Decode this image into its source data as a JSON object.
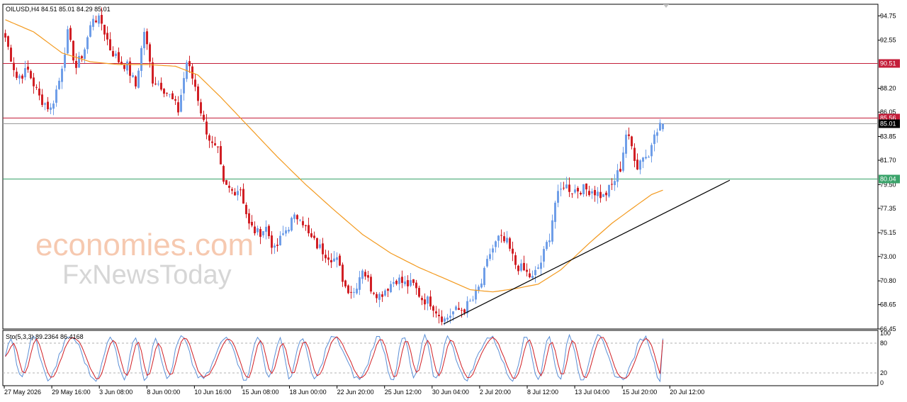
{
  "header": {
    "symbol_info": "OILUSD,H4  84.51 85.01 84.29 85.01",
    "stoch_info": "Sto(5,3,3) 89.2364 86.4168"
  },
  "watermark": {
    "line1": "economies.com",
    "line2": "FxNewsToday"
  },
  "colors": {
    "bull": "#6f9ee8",
    "bear": "#d11f25",
    "ma": "#f39a1f",
    "resistance": "#c41e3a",
    "support": "#3aa36a",
    "current": "#000000",
    "stoch_main": "#5b8fd6",
    "stoch_signal": "#d11f25"
  },
  "chart_data": {
    "type": "candlestick",
    "symbol": "OILUSD",
    "timeframe": "H4",
    "ohlc_last": {
      "open": 84.51,
      "high": 85.01,
      "low": 84.29,
      "close": 85.01
    },
    "y_ticks": [
      "94.75",
      "92.55",
      "90.51",
      "88.20",
      "86.05",
      "85.56",
      "85.01",
      "83.85",
      "81.70",
      "80.04",
      "79.50",
      "77.35",
      "75.15",
      "73.00",
      "70.80",
      "68.65",
      "66.45"
    ],
    "ylim": [
      66.45,
      95.8
    ],
    "x_labels": [
      "27 May 2026",
      "29 May 16:00",
      "3 Jun 08:00",
      "8 Jun 00:00",
      "10 Jun 16:00",
      "15 Jun 08:00",
      "18 Jun 00:00",
      "22 Jun 20:00",
      "25 Jun 12:00",
      "30 Jun 04:00",
      "2 Jul 20:00",
      "8 Jul 12:00",
      "13 Jul 04:00",
      "15 Jul 20:00",
      "20 Jul 12:00"
    ],
    "horizontal_levels": [
      {
        "value": 90.51,
        "label": "90.51",
        "role": "resistance"
      },
      {
        "value": 85.56,
        "label": "85.56",
        "role": "resistance"
      },
      {
        "value": 85.01,
        "label": "85.01",
        "role": "current"
      },
      {
        "value": 80.04,
        "label": "80.04",
        "role": "support"
      }
    ],
    "trendline": {
      "from": {
        "bar": 155,
        "price": 66.9
      },
      "to": {
        "bar": 256,
        "price": 79.9
      }
    },
    "close_path": [
      [
        0,
        92.8
      ],
      [
        4,
        89.2
      ],
      [
        8,
        89.8
      ],
      [
        12,
        87.4
      ],
      [
        16,
        86.3
      ],
      [
        19,
        88.9
      ],
      [
        22,
        93.1
      ],
      [
        25,
        90.1
      ],
      [
        28,
        91.8
      ],
      [
        31,
        94.7
      ],
      [
        34,
        94.1
      ],
      [
        37,
        91.8
      ],
      [
        40,
        90.7
      ],
      [
        43,
        90.2
      ],
      [
        46,
        88.4
      ],
      [
        49,
        93.4
      ],
      [
        52,
        89.0
      ],
      [
        55,
        88.5
      ],
      [
        58,
        87.5
      ],
      [
        61,
        86.2
      ],
      [
        64,
        90.6
      ],
      [
        67,
        88.4
      ],
      [
        70,
        85.1
      ],
      [
        73,
        83.0
      ],
      [
        75,
        82.4
      ],
      [
        77,
        79.4
      ],
      [
        80,
        78.9
      ],
      [
        83,
        79.2
      ],
      [
        86,
        75.8
      ],
      [
        89,
        75.1
      ],
      [
        92,
        75.6
      ],
      [
        95,
        73.5
      ],
      [
        98,
        75.0
      ],
      [
        101,
        76.2
      ],
      [
        104,
        76.8
      ],
      [
        107,
        74.9
      ],
      [
        110,
        74.0
      ],
      [
        113,
        73.3
      ],
      [
        117,
        72.6
      ],
      [
        120,
        70.3
      ],
      [
        123,
        69.8
      ],
      [
        126,
        72.0
      ],
      [
        129,
        70.2
      ],
      [
        132,
        69.5
      ],
      [
        135,
        70.3
      ],
      [
        138,
        71.0
      ],
      [
        141,
        70.5
      ],
      [
        144,
        70.4
      ],
      [
        147,
        69.2
      ],
      [
        150,
        68.9
      ],
      [
        153,
        67.8
      ],
      [
        155,
        67.3
      ],
      [
        158,
        68.0
      ],
      [
        162,
        68.3
      ],
      [
        165,
        69.1
      ],
      [
        168,
        70.6
      ],
      [
        171,
        73.3
      ],
      [
        174,
        74.6
      ],
      [
        177,
        74.2
      ],
      [
        180,
        72.3
      ],
      [
        183,
        71.7
      ],
      [
        186,
        71.0
      ],
      [
        189,
        72.5
      ],
      [
        192,
        74.9
      ],
      [
        194,
        77.9
      ],
      [
        197,
        79.5
      ],
      [
        200,
        79.0
      ],
      [
        203,
        79.1
      ],
      [
        207,
        79.0
      ],
      [
        211,
        78.4
      ],
      [
        214,
        79.4
      ],
      [
        217,
        81.0
      ],
      [
        219,
        84.1
      ],
      [
        221,
        82.9
      ],
      [
        223,
        81.2
      ],
      [
        225,
        82.2
      ],
      [
        227,
        82.0
      ],
      [
        229,
        84.5
      ],
      [
        232,
        85.01
      ]
    ],
    "moving_average": [
      [
        0,
        94.4
      ],
      [
        10,
        93.3
      ],
      [
        20,
        91.4
      ],
      [
        30,
        90.6
      ],
      [
        40,
        90.35
      ],
      [
        50,
        90.35
      ],
      [
        60,
        90.2
      ],
      [
        68,
        89.4
      ],
      [
        76,
        87.4
      ],
      [
        86,
        84.7
      ],
      [
        96,
        82.0
      ],
      [
        106,
        79.5
      ],
      [
        116,
        77.2
      ],
      [
        126,
        75.0
      ],
      [
        136,
        73.3
      ],
      [
        146,
        72.0
      ],
      [
        156,
        70.9
      ],
      [
        164,
        70.0
      ],
      [
        172,
        69.8
      ],
      [
        180,
        70.1
      ],
      [
        188,
        70.5
      ],
      [
        196,
        71.8
      ],
      [
        206,
        74.2
      ],
      [
        214,
        76.0
      ],
      [
        222,
        77.5
      ],
      [
        228,
        78.6
      ],
      [
        232,
        79.0
      ]
    ],
    "stochastic": {
      "params": "5,3,3",
      "main": 89.2364,
      "signal": 86.4168,
      "ylim": [
        0,
        100
      ],
      "levels": [
        80,
        20
      ],
      "y_ticks": [
        "100",
        "80",
        "20",
        "0"
      ]
    }
  }
}
